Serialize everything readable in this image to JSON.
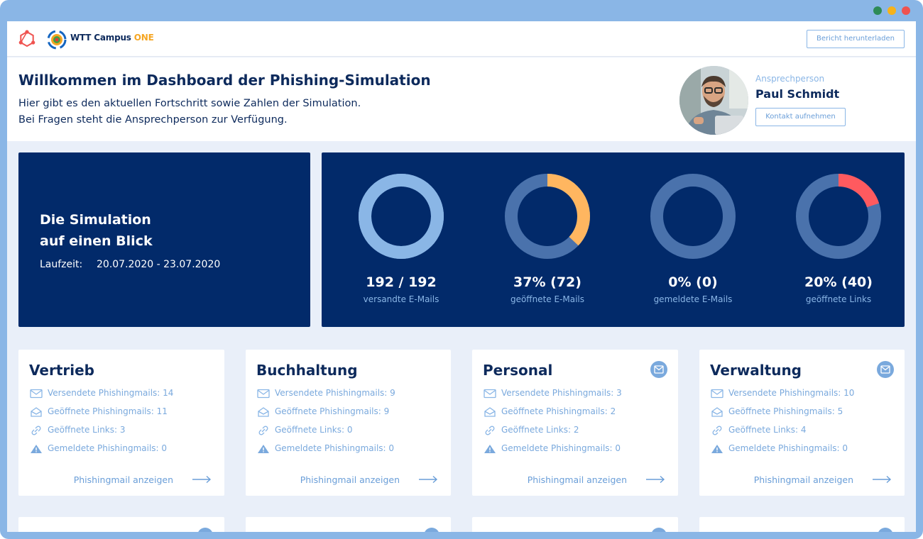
{
  "brand": {
    "name": "WTT Campus",
    "name_suffix": "ONE"
  },
  "toolbar": {
    "download_label": "Bericht herunterladen"
  },
  "welcome": {
    "title": "Willkommen im Dashboard der Phishing-Simulation",
    "line1": "Hier gibt es den aktuellen Fortschritt sowie Zahlen der Simulation.",
    "line2": "Bei Fragen steht die Ansprechperson zur Verfügung."
  },
  "contact": {
    "role": "Ansprechperson",
    "name": "Paul Schmidt",
    "button_label": "Kontakt aufnehmen"
  },
  "summary": {
    "title_line1": "Die Simulation",
    "title_line2": "auf einen Blick",
    "runtime_label": "Laufzeit:",
    "runtime_value": "20.07.2020 - 23.07.2020"
  },
  "stats": [
    {
      "value": "192 / 192",
      "label": "versandte E-Mails",
      "fraction": 1.0,
      "color": "#8ab6e6",
      "track": "#8ab6e6"
    },
    {
      "value": "37% (72)",
      "label": "geöffnete E-Mails",
      "fraction": 0.37,
      "color": "#ffb660",
      "track": "#4a72ac"
    },
    {
      "value": "0% (0)",
      "label": "gemeldete E-Mails",
      "fraction": 0.0,
      "color": "#ff5a5f",
      "track": "#4a72ac"
    },
    {
      "value": "20% (40)",
      "label": "geöffnete Links",
      "fraction": 0.2,
      "color": "#ff5a5f",
      "track": "#4a72ac"
    }
  ],
  "departments": [
    {
      "name": "Vertrieb",
      "badge": false,
      "sent": "Versendete Phishingmails: 14",
      "opened": "Geöffnete Phishingmails: 11",
      "links": "Geöffnete Links: 3",
      "reported": "Gemeldete Phishingmails: 0",
      "link_label": "Phishingmail anzeigen"
    },
    {
      "name": "Buchhaltung",
      "badge": false,
      "sent": "Versendete Phishingmails: 9",
      "opened": "Geöffnete Phishingmails: 9",
      "links": "Geöffnete Links: 0",
      "reported": "Gemeldete Phishingmails: 0",
      "link_label": "Phishingmail anzeigen"
    },
    {
      "name": "Personal",
      "badge": true,
      "sent": "Versendete Phishingmails: 3",
      "opened": "Geöffnete Phishingmails: 2",
      "links": "Geöffnete Links: 2",
      "reported": "Gemeldete Phishingmails: 0",
      "link_label": "Phishingmail anzeigen"
    },
    {
      "name": "Verwaltung",
      "badge": true,
      "sent": "Versendete Phishingmails: 10",
      "opened": "Geöffnete Phishingmails: 5",
      "links": "Geöffnete Links: 4",
      "reported": "Gemeldete Phishingmails: 0",
      "link_label": "Phishingmail anzeigen"
    }
  ],
  "icons": {
    "brand_mark": "hexagon-network-icon",
    "sent": "envelope-icon",
    "opened": "open-envelope-icon",
    "links": "link-icon",
    "reported": "warning-icon",
    "arrow": "arrow-right-icon",
    "badge": "mail-badge-icon"
  }
}
